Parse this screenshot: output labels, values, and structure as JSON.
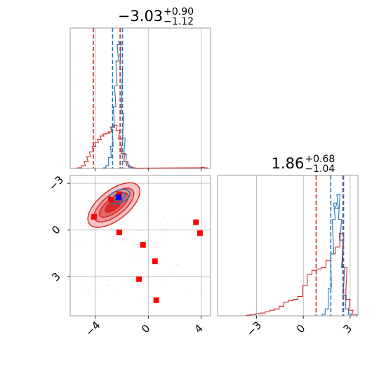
{
  "chart_data": {
    "type": "corner",
    "colors": {
      "red": "#d62728",
      "blue": "#1f77b4",
      "grid": "#b0b0b0",
      "frame": "#7f7f7f",
      "marker_red": "#ff0000",
      "marker_blue": "#0000ff"
    },
    "panels": {
      "hist_x": {
        "title_main": "−3.03",
        "title_sup": "+0.90",
        "title_sub": "−1.12",
        "xlim": [
          -5.9,
          4.7
        ],
        "grid_x": [
          -4,
          0,
          4
        ],
        "quantiles_red": [
          -4.15,
          -2.13
        ],
        "median_red": -2.13,
        "quantiles_blue": [
          -2.7,
          -1.95
        ],
        "median_blue": -2.25,
        "hist_red": [
          [
            -5.2,
            0.005
          ],
          [
            -4.9,
            0.02
          ],
          [
            -4.7,
            0.05
          ],
          [
            -4.5,
            0.085
          ],
          [
            -4.3,
            0.12
          ],
          [
            -4.1,
            0.16
          ],
          [
            -3.9,
            0.19
          ],
          [
            -3.7,
            0.21
          ],
          [
            -3.5,
            0.235
          ],
          [
            -3.3,
            0.25
          ],
          [
            -3.1,
            0.255
          ],
          [
            -2.9,
            0.265
          ],
          [
            -2.7,
            0.3
          ],
          [
            -2.5,
            0.315
          ],
          [
            -2.3,
            0.275
          ],
          [
            -2.1,
            0.215
          ],
          [
            -1.9,
            0.11
          ],
          [
            -1.7,
            0.05
          ],
          [
            -1.5,
            0.02
          ],
          [
            -1.3,
            0.01
          ],
          [
            -1.1,
            0.005
          ],
          [
            -0.9,
            0.002
          ],
          [
            3.9,
            0.005
          ],
          [
            4.1,
            0.008
          ],
          [
            4.3,
            0.004
          ]
        ],
        "hist_blue": [
          [
            -3.3,
            0.005
          ],
          [
            -3.1,
            0.02
          ],
          [
            -2.9,
            0.08
          ],
          [
            -2.75,
            0.16
          ],
          [
            -2.65,
            0.3
          ],
          [
            -2.55,
            0.45
          ],
          [
            -2.45,
            0.6
          ],
          [
            -2.35,
            0.78
          ],
          [
            -2.25,
            0.9
          ],
          [
            -2.15,
            0.92
          ],
          [
            -2.05,
            0.72
          ],
          [
            -1.95,
            0.4
          ],
          [
            -1.85,
            0.22
          ],
          [
            -1.75,
            0.1
          ],
          [
            -1.6,
            0.04
          ],
          [
            -1.4,
            0.01
          ],
          [
            -1.2,
            0.003
          ]
        ]
      },
      "hist_y": {
        "title_main": "1.86",
        "title_sup": "+0.68",
        "title_sub": "−1.04",
        "xlim": [
          -5.5,
          3.5
        ],
        "grid_x": [
          -3,
          0,
          3
        ],
        "tick_labels": [
          "−3",
          "0",
          "3"
        ],
        "quantiles_red": [
          0.82,
          2.54
        ],
        "median_red": 2.54,
        "quantiles_blue": [
          1.76,
          2.58
        ],
        "median_blue": 2.45,
        "hist_red": [
          [
            -3.5,
            0.005
          ],
          [
            -3.2,
            0.01
          ],
          [
            -2.9,
            0.015
          ],
          [
            -2.6,
            0.02
          ],
          [
            -2.3,
            0.03
          ],
          [
            -2.0,
            0.04
          ],
          [
            -1.7,
            0.05
          ],
          [
            -1.4,
            0.07
          ],
          [
            -1.1,
            0.1
          ],
          [
            -0.8,
            0.11
          ],
          [
            -0.5,
            0.12
          ],
          [
            -0.2,
            0.14
          ],
          [
            0.1,
            0.22
          ],
          [
            0.4,
            0.3
          ],
          [
            0.7,
            0.33
          ],
          [
            1.0,
            0.34
          ],
          [
            1.3,
            0.35
          ],
          [
            1.6,
            0.4
          ],
          [
            1.9,
            0.45
          ],
          [
            2.2,
            0.5
          ],
          [
            2.45,
            0.6
          ],
          [
            2.65,
            0.35
          ],
          [
            2.85,
            0.12
          ],
          [
            3.05,
            0.04
          ],
          [
            3.25,
            0.01
          ]
        ],
        "hist_blue": [
          [
            1.3,
            0.01
          ],
          [
            1.5,
            0.05
          ],
          [
            1.7,
            0.2
          ],
          [
            1.85,
            0.45
          ],
          [
            1.95,
            0.7
          ],
          [
            2.05,
            0.82
          ],
          [
            2.15,
            0.78
          ],
          [
            2.25,
            0.88
          ],
          [
            2.35,
            0.7
          ],
          [
            2.45,
            0.55
          ],
          [
            2.55,
            0.35
          ],
          [
            2.65,
            0.15
          ],
          [
            2.8,
            0.05
          ],
          [
            3.0,
            0.01
          ]
        ]
      },
      "joint": {
        "xlim": [
          -5.9,
          4.7
        ],
        "ylim": [
          -5.5,
          3.5
        ],
        "grid_x": [
          -4,
          0,
          4
        ],
        "grid_y": [
          -3,
          0,
          3
        ],
        "x_tick_labels": [
          "−4",
          "0",
          "4"
        ],
        "y_tick_labels": [
          "3",
          "0",
          "−3"
        ],
        "points_red": [
          [
            -4.1,
            0.85
          ],
          [
            -2.8,
            1.95
          ],
          [
            -2.2,
            2.3
          ],
          [
            -2.2,
            -0.15
          ],
          [
            -0.4,
            -0.95
          ],
          [
            0.5,
            -2.0
          ],
          [
            -0.7,
            -3.15
          ],
          [
            0.6,
            -4.5
          ],
          [
            3.6,
            0.5
          ],
          [
            3.9,
            -0.2
          ]
        ],
        "point_blue": [
          -2.25,
          2.1
        ]
      }
    }
  }
}
